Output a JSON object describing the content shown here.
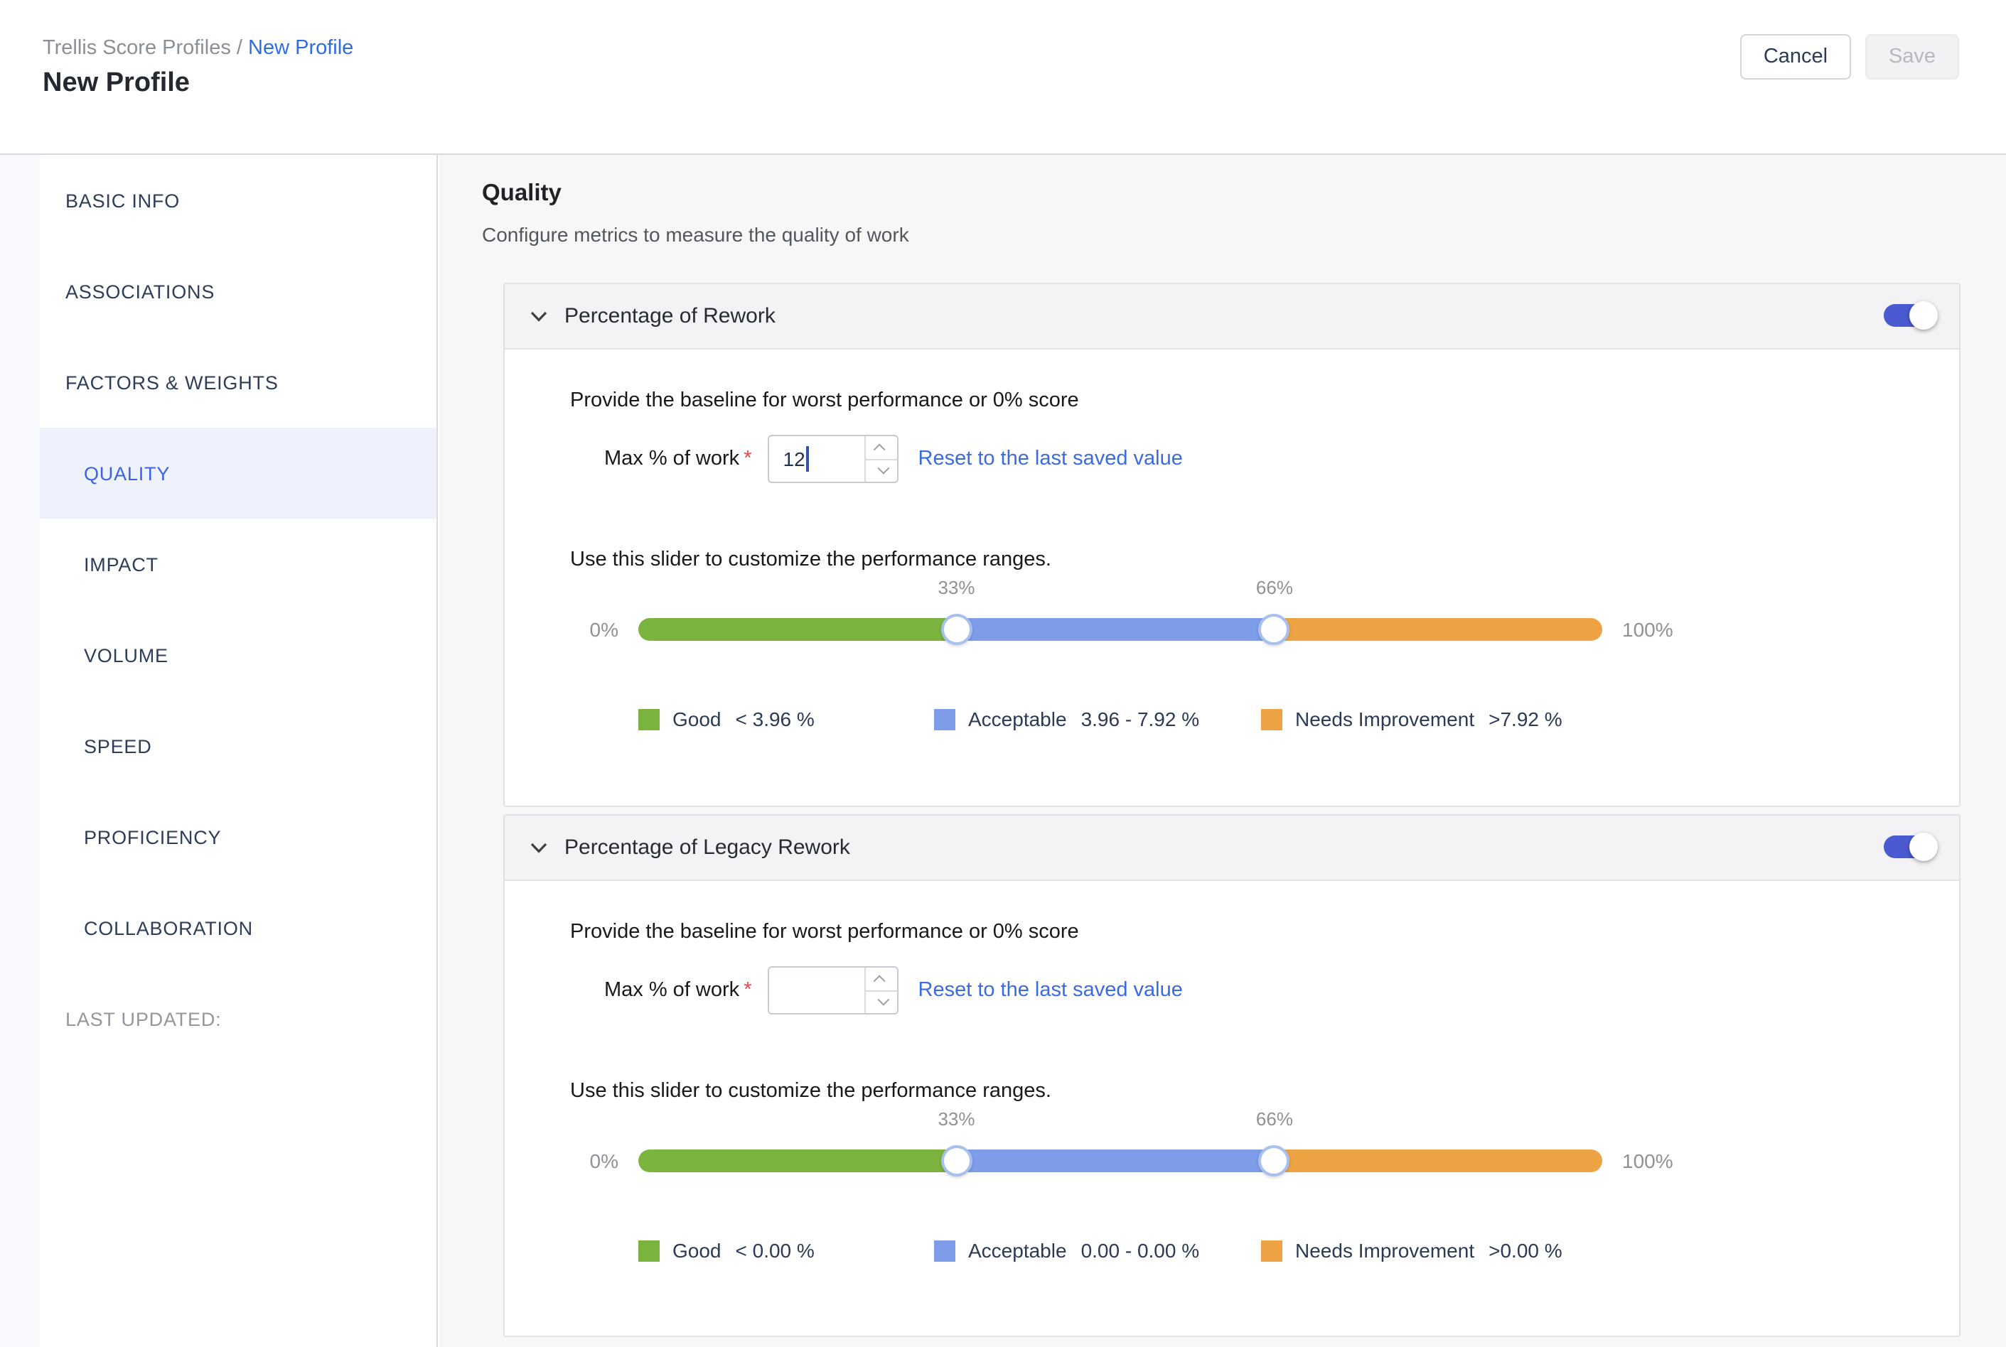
{
  "header": {
    "breadcrumb": {
      "parent": "Trellis Score Profiles",
      "separator": " / ",
      "current": "New Profile"
    },
    "title": "New Profile",
    "cancel_label": "Cancel",
    "save_label": "Save"
  },
  "sidebar": {
    "items": [
      {
        "label": "BASIC INFO",
        "level": 1,
        "active": false
      },
      {
        "label": "ASSOCIATIONS",
        "level": 1,
        "active": false
      },
      {
        "label": "FACTORS & WEIGHTS",
        "level": 1,
        "active": false
      },
      {
        "label": "QUALITY",
        "level": 2,
        "active": true
      },
      {
        "label": "IMPACT",
        "level": 2,
        "active": false
      },
      {
        "label": "VOLUME",
        "level": 2,
        "active": false
      },
      {
        "label": "SPEED",
        "level": 2,
        "active": false
      },
      {
        "label": "PROFICIENCY",
        "level": 2,
        "active": false
      },
      {
        "label": "COLLABORATION",
        "level": 2,
        "active": false
      },
      {
        "label": "LAST UPDATED:",
        "level": 1,
        "active": false,
        "muted": true
      }
    ]
  },
  "main": {
    "title": "Quality",
    "subtitle": "Configure metrics to measure the quality of work",
    "cards": [
      {
        "title": "Percentage of Rework",
        "enabled": true,
        "baseline_text": "Provide the baseline for worst performance or 0% score",
        "max_label": "Max % of work",
        "required_marker": "*",
        "max_value": "12",
        "reset_label": "Reset to the last saved value",
        "slider_text": "Use this slider to customize the performance ranges.",
        "slider": {
          "min_label": "0%",
          "max_label": "100%",
          "handle1_label": "33%",
          "handle2_label": "66%",
          "handle1_pct": 33,
          "handle2_pct": 66
        },
        "legend": [
          {
            "name": "Good",
            "range": "< 3.96 %",
            "color": "#7ab33e"
          },
          {
            "name": "Acceptable",
            "range": "3.96 - 7.92 %",
            "color": "#7d9de8"
          },
          {
            "name": "Needs Improvement",
            "range": ">7.92 %",
            "color": "#eda343"
          }
        ]
      },
      {
        "title": "Percentage of Legacy Rework",
        "enabled": true,
        "baseline_text": "Provide the baseline for worst performance or 0% score",
        "max_label": "Max % of work",
        "required_marker": "*",
        "max_value": "",
        "reset_label": "Reset to the last saved value",
        "slider_text": "Use this slider to customize the performance ranges.",
        "slider": {
          "min_label": "0%",
          "max_label": "100%",
          "handle1_label": "33%",
          "handle2_label": "66%",
          "handle1_pct": 33,
          "handle2_pct": 66
        },
        "legend": [
          {
            "name": "Good",
            "range": "< 0.00 %",
            "color": "#7ab33e"
          },
          {
            "name": "Acceptable",
            "range": "0.00 - 0.00 %",
            "color": "#7d9de8"
          },
          {
            "name": "Needs Improvement",
            "range": ">0.00 %",
            "color": "#eda343"
          }
        ]
      }
    ]
  },
  "colors": {
    "accent_link_blue": "#3a6be0",
    "breadcrumb_link_blue": "#2e6de5",
    "active_nav_blue": "#3f63e0",
    "toggle_on_blue": "#4a5ad0",
    "good_green": "#7ab33e",
    "acceptable_blue": "#7d9de8",
    "needs_improvement_orange": "#eda343",
    "required_red": "#e5484d"
  }
}
